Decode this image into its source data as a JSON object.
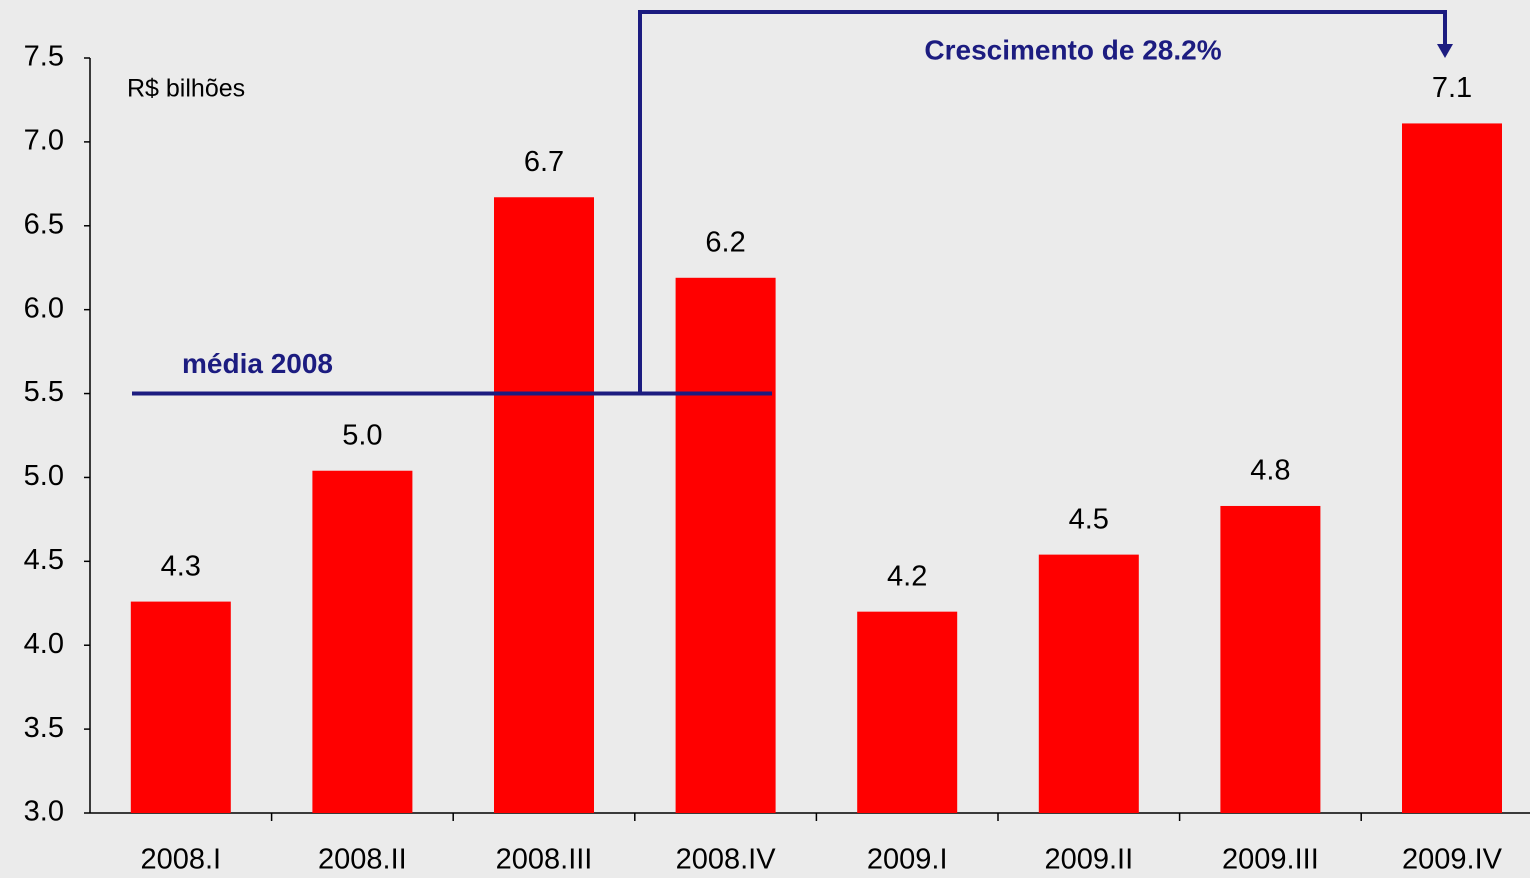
{
  "chart_data": {
    "type": "bar",
    "y_axis_label": "R$ bilhões",
    "categories": [
      "2008.I",
      "2008.II",
      "2008.III",
      "2008.IV",
      "2009.I",
      "2009.II",
      "2009.III",
      "2009.IV"
    ],
    "values": [
      4.26,
      5.04,
      6.67,
      6.19,
      4.2,
      4.54,
      4.83,
      7.11
    ],
    "value_labels": [
      "4.3",
      "5.0",
      "6.7",
      "6.2",
      "4.2",
      "4.5",
      "4.8",
      "7.1"
    ],
    "color": "#ff0000",
    "ylim": [
      3.0,
      7.5
    ],
    "yticks": [
      {
        "value": 3.0,
        "label": "3.0"
      },
      3.5,
      {
        "value": 4.0,
        "label": "4.0"
      },
      4.5,
      {
        "value": 5.0,
        "label": "5.0"
      },
      5.5,
      {
        "value": 6.0,
        "label": "6.0"
      },
      6.5,
      {
        "value": 7.0,
        "label": "7.0"
      },
      7.5
    ],
    "reference_line": {
      "label": "média 2008",
      "value": 5.5,
      "color": "#1c1c80"
    },
    "annotation": "Crescimento de 28.2%",
    "grid": false
  }
}
